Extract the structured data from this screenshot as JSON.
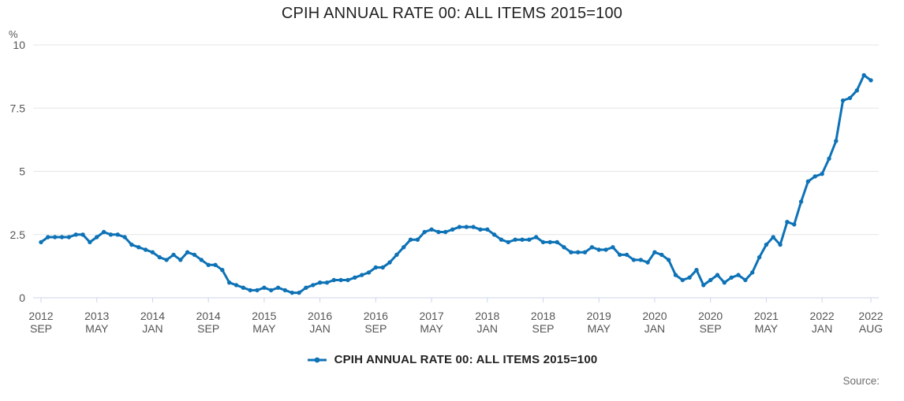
{
  "header": {
    "title": "CPIH ANNUAL RATE 00: ALL ITEMS 2015=100"
  },
  "legend": {
    "label": "CPIH ANNUAL RATE 00: ALL ITEMS 2015=100"
  },
  "footer": {
    "source_label": "Source:"
  },
  "colors": {
    "line": "#0d72b6",
    "marker": "#0d72b6",
    "gridline": "#e6e6e6",
    "axis": "#ccd6eb",
    "tick_label": "#555555",
    "title_text": "#222222",
    "legend_text": "#222222",
    "source_text": "#6e6e6e"
  },
  "chart_data": {
    "type": "line",
    "title": "CPIH ANNUAL RATE 00: ALL ITEMS 2015=100",
    "unit_label": "%",
    "xlabel": "",
    "ylabel": "%",
    "ylim": [
      0,
      10
    ],
    "y_ticks": {
      "values": [
        0,
        2.5,
        5,
        7.5,
        10
      ],
      "labels": [
        "0",
        "2.5",
        "5",
        "7.5",
        "10"
      ]
    },
    "grid": "horizontal-only",
    "legend_position": "bottom-center",
    "x_frequency": "monthly",
    "x_start": "2012 SEP",
    "x_end": "2022 AUG",
    "x_ticks": [
      {
        "month_index": 0,
        "year": "2012",
        "month": "SEP"
      },
      {
        "month_index": 8,
        "year": "2013",
        "month": "MAY"
      },
      {
        "month_index": 16,
        "year": "2014",
        "month": "JAN"
      },
      {
        "month_index": 24,
        "year": "2014",
        "month": "SEP"
      },
      {
        "month_index": 32,
        "year": "2015",
        "month": "MAY"
      },
      {
        "month_index": 40,
        "year": "2016",
        "month": "JAN"
      },
      {
        "month_index": 48,
        "year": "2016",
        "month": "SEP"
      },
      {
        "month_index": 56,
        "year": "2017",
        "month": "MAY"
      },
      {
        "month_index": 64,
        "year": "2018",
        "month": "JAN"
      },
      {
        "month_index": 72,
        "year": "2018",
        "month": "SEP"
      },
      {
        "month_index": 80,
        "year": "2019",
        "month": "MAY"
      },
      {
        "month_index": 88,
        "year": "2020",
        "month": "JAN"
      },
      {
        "month_index": 96,
        "year": "2020",
        "month": "SEP"
      },
      {
        "month_index": 104,
        "year": "2021",
        "month": "MAY"
      },
      {
        "month_index": 112,
        "year": "2022",
        "month": "JAN"
      },
      {
        "month_index": 119,
        "year": "2022",
        "month": "AUG"
      }
    ],
    "series": [
      {
        "name": "CPIH ANNUAL RATE 00: ALL ITEMS 2015=100",
        "values": [
          2.2,
          2.4,
          2.4,
          2.4,
          2.4,
          2.5,
          2.5,
          2.2,
          2.4,
          2.6,
          2.5,
          2.5,
          2.4,
          2.1,
          2.0,
          1.9,
          1.8,
          1.6,
          1.5,
          1.7,
          1.5,
          1.8,
          1.7,
          1.5,
          1.3,
          1.3,
          1.1,
          0.6,
          0.5,
          0.4,
          0.3,
          0.3,
          0.4,
          0.3,
          0.4,
          0.3,
          0.2,
          0.2,
          0.4,
          0.5,
          0.6,
          0.6,
          0.7,
          0.7,
          0.7,
          0.8,
          0.9,
          1.0,
          1.2,
          1.2,
          1.4,
          1.7,
          2.0,
          2.3,
          2.3,
          2.6,
          2.7,
          2.6,
          2.6,
          2.7,
          2.8,
          2.8,
          2.8,
          2.7,
          2.7,
          2.5,
          2.3,
          2.2,
          2.3,
          2.3,
          2.3,
          2.4,
          2.2,
          2.2,
          2.2,
          2.0,
          1.8,
          1.8,
          1.8,
          2.0,
          1.9,
          1.9,
          2.0,
          1.7,
          1.7,
          1.5,
          1.5,
          1.4,
          1.8,
          1.7,
          1.5,
          0.9,
          0.7,
          0.8,
          1.1,
          0.5,
          0.7,
          0.9,
          0.6,
          0.8,
          0.9,
          0.7,
          1.0,
          1.6,
          2.1,
          2.4,
          2.1,
          3.0,
          2.9,
          3.8,
          4.6,
          4.8,
          4.9,
          5.5,
          6.2,
          7.8,
          7.9,
          8.2,
          8.8,
          8.6
        ]
      }
    ]
  }
}
